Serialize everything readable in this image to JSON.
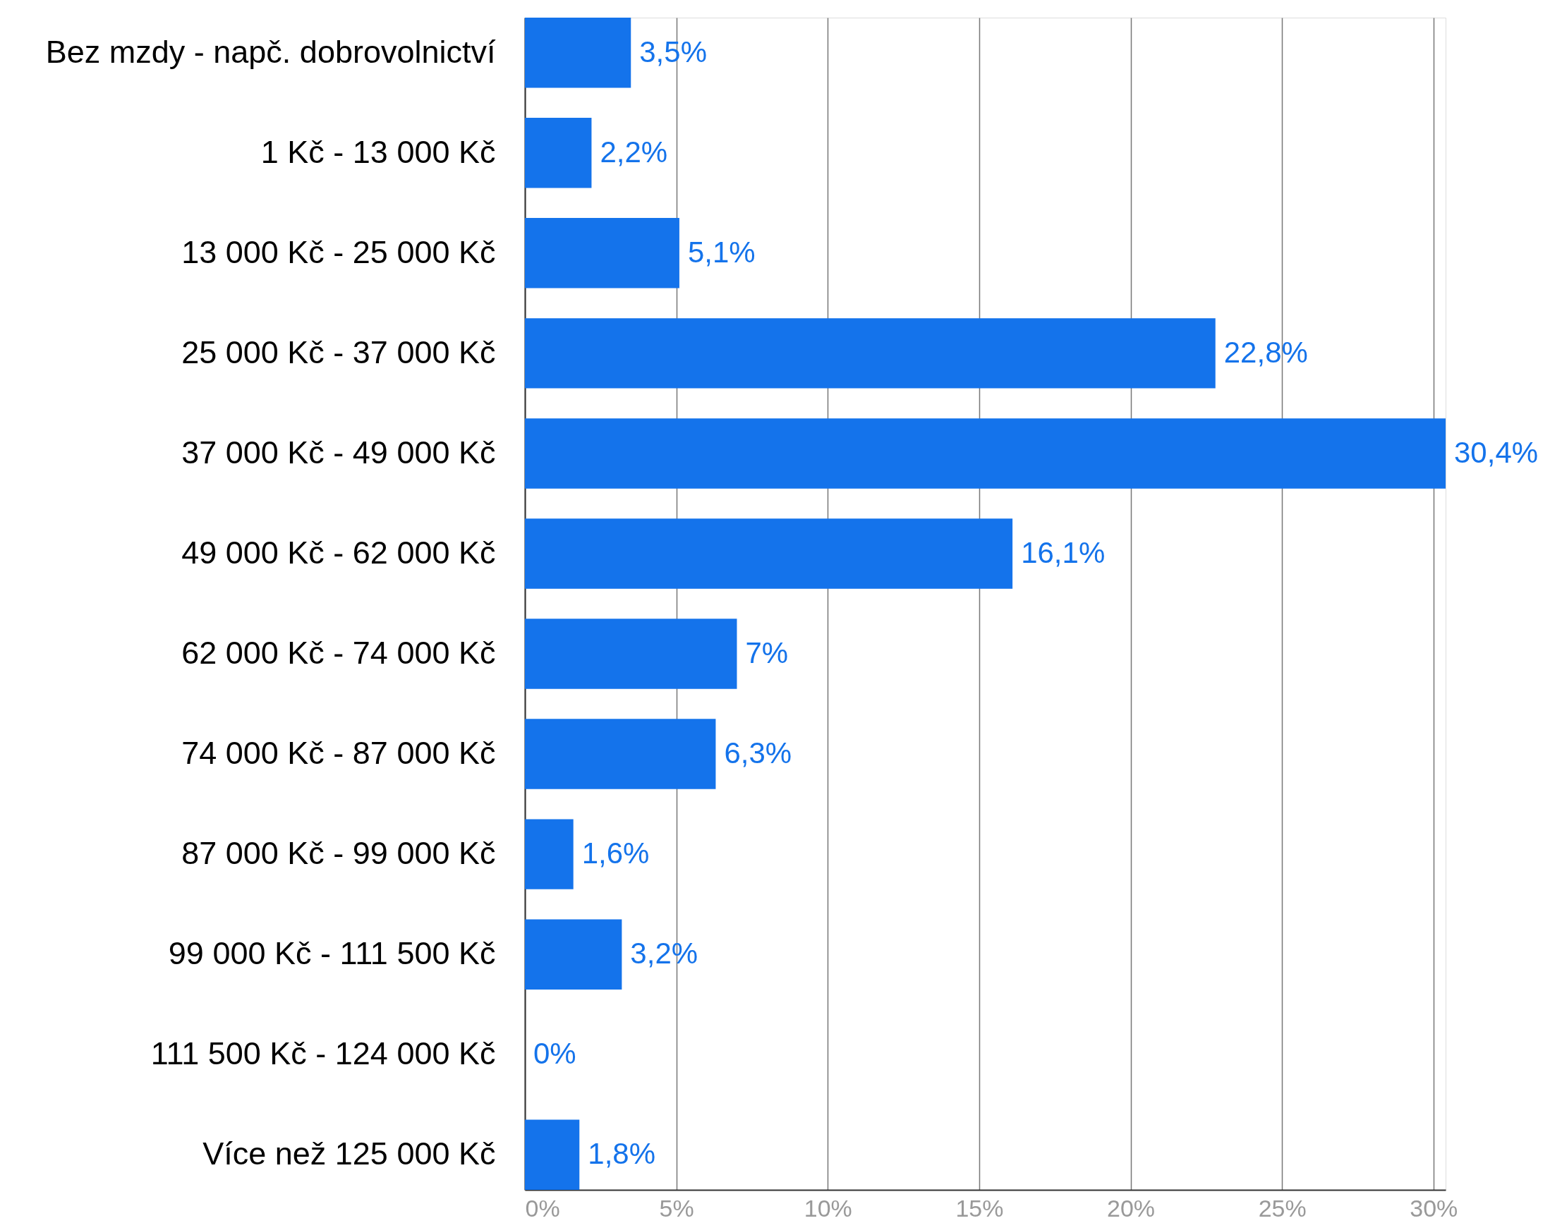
{
  "chart_data": {
    "type": "bar",
    "orientation": "horizontal",
    "categories": [
      "Bez mzdy - napč. dobrovolnictví",
      "1 Kč - 13 000 Kč",
      "13 000 Kč - 25 000 Kč",
      "25 000 Kč - 37 000 Kč",
      "37 000 Kč - 49 000 Kč",
      "49 000 Kč - 62 000 Kč",
      "62 000 Kč - 74 000 Kč",
      "74 000 Kč - 87 000 Kč",
      "87 000 Kč - 99 000 Kč",
      "99 000 Kč - 111 500 Kč",
      "111 500 Kč - 124 000 Kč",
      "Více než 125 000 Kč"
    ],
    "values": [
      3.5,
      2.2,
      5.1,
      22.8,
      30.4,
      16.1,
      7,
      6.3,
      1.6,
      3.2,
      0,
      1.8
    ],
    "value_labels": [
      "3,5%",
      "2,2%",
      "5,1%",
      "22,8%",
      "30,4%",
      "16,1%",
      "7%",
      "6,3%",
      "1,6%",
      "3,2%",
      "0%",
      "1,8%"
    ],
    "color": "#1473eb",
    "xlim": [
      0,
      30.4
    ],
    "xticks": [
      {
        "value": 0,
        "label": "0%"
      },
      {
        "value": 5,
        "label": "5%"
      },
      {
        "value": 10,
        "label": "10%"
      },
      {
        "value": 15,
        "label": "15%"
      },
      {
        "value": 20,
        "label": "20%"
      },
      {
        "value": 25,
        "label": "25%"
      },
      {
        "value": 30,
        "label": "30%"
      }
    ],
    "grid": "x"
  }
}
